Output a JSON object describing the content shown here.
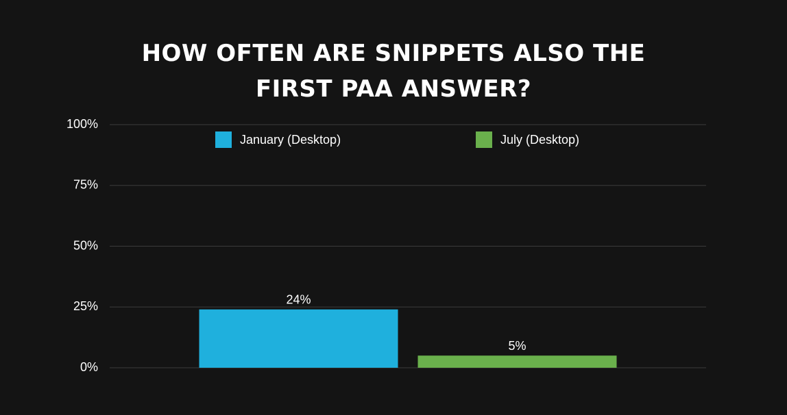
{
  "chart_data": {
    "type": "bar",
    "title": "HOW OFTEN ARE SNIPPETS ALSO THE FIRST PAA ANSWER?",
    "categories": [
      null
    ],
    "series": [
      {
        "name": "January (Desktop)",
        "color": "#1fb0dd",
        "values": [
          24
        ],
        "value_labels": [
          "24%"
        ]
      },
      {
        "name": "July (Desktop)",
        "color": "#6ab04c",
        "values": [
          5
        ],
        "value_labels": [
          "5%"
        ]
      }
    ],
    "ylim": [
      0,
      100
    ],
    "yticks": [
      {
        "value": 0,
        "label": "0%"
      },
      {
        "value": 25,
        "label": "25%"
      },
      {
        "value": 50,
        "label": "50%"
      },
      {
        "value": 75,
        "label": "75%"
      },
      {
        "value": 100,
        "label": "100%"
      }
    ],
    "grid": true
  }
}
